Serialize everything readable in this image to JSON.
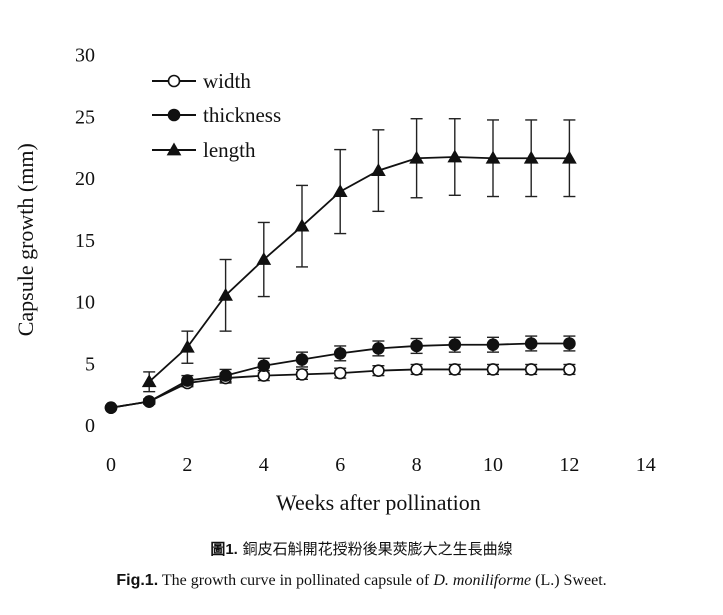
{
  "chart_data": {
    "type": "line",
    "xlabel": "Weeks after pollination",
    "ylabel": "Capsule growth (mm)",
    "xlim": [
      0,
      14
    ],
    "ylim": [
      0,
      30
    ],
    "x_ticks": [
      "0",
      "2",
      "4",
      "6",
      "8",
      "10",
      "12",
      "14"
    ],
    "y_ticks": [
      "0",
      "5",
      "10",
      "15",
      "20",
      "25",
      "30"
    ],
    "grid": false,
    "legend_position": "top-left",
    "series": [
      {
        "name": "width",
        "marker": "open-circle",
        "x": [
          0,
          1,
          2,
          3,
          4,
          5,
          6,
          7,
          8,
          9,
          10,
          11,
          12
        ],
        "y": [
          1.4,
          1.9,
          3.4,
          3.8,
          4.0,
          4.1,
          4.2,
          4.4,
          4.5,
          4.5,
          4.5,
          4.5,
          4.5
        ],
        "error": [
          0.1,
          0.2,
          0.3,
          0.4,
          0.4,
          0.4,
          0.4,
          0.4,
          0.4,
          0.4,
          0.4,
          0.4,
          0.4
        ]
      },
      {
        "name": "thickness",
        "marker": "filled-circle",
        "x": [
          0,
          1,
          2,
          3,
          4,
          5,
          6,
          7,
          8,
          9,
          10,
          11,
          12
        ],
        "y": [
          1.4,
          1.9,
          3.6,
          4.0,
          4.8,
          5.3,
          5.8,
          6.2,
          6.4,
          6.5,
          6.5,
          6.6,
          6.6
        ],
        "error": [
          0.1,
          0.2,
          0.4,
          0.5,
          0.6,
          0.6,
          0.6,
          0.6,
          0.6,
          0.6,
          0.6,
          0.6,
          0.6
        ]
      },
      {
        "name": "length",
        "marker": "filled-triangle",
        "x": [
          1,
          2,
          3,
          4,
          5,
          6,
          7,
          8,
          9,
          10,
          11,
          12
        ],
        "y": [
          3.5,
          6.3,
          10.5,
          13.4,
          16.1,
          18.9,
          20.6,
          21.6,
          21.7,
          21.6,
          21.6,
          21.6
        ],
        "error": [
          0.8,
          1.3,
          2.9,
          3.0,
          3.3,
          3.4,
          3.3,
          3.2,
          3.1,
          3.1,
          3.1,
          3.1
        ]
      }
    ]
  },
  "caption": {
    "zh_tag": "圖1.",
    "zh_text": "銅皮石斛開花授粉後果莢膨大之生長曲線",
    "en_tag": "Fig.1.",
    "en_text_before": "The growth curve in pollinated capsule of",
    "en_species": "D. moniliforme",
    "en_text_after": "(L.) Sweet."
  }
}
